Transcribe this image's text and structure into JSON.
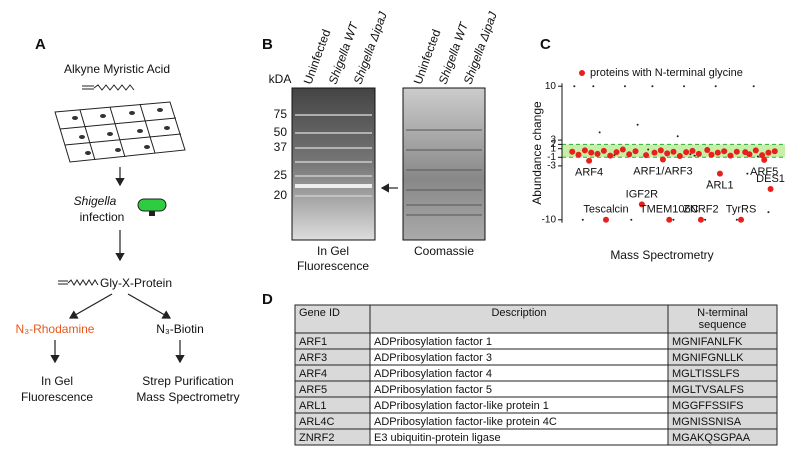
{
  "panel_a": {
    "label": "A",
    "step1": "Alkyne Myristic Acid",
    "organism": "Shigella",
    "infection": "infection",
    "product": "Gly-X-Protein",
    "left_reagent": "N₃-Rhodamine",
    "right_reagent": "N₃-Biotin",
    "left_out_1": "In Gel",
    "left_out_2": "Fluorescence",
    "right_out_1": "Strep Purification",
    "right_out_2": "Mass Spectrometry"
  },
  "panel_b": {
    "label": "B",
    "unit": "kDA",
    "lanes": [
      "Uninfected",
      "Shigella WT",
      "Shigella ΔipaJ"
    ],
    "markers": [
      "75",
      "50",
      "37",
      "25",
      "20"
    ],
    "gel1_1": "In Gel",
    "gel1_2": "Fluorescence",
    "gel2": "Coomassie"
  },
  "chart_data": {
    "type": "scatter",
    "label": "C",
    "ylabel": "Abundance change",
    "xlabel": "Mass Spectrometry",
    "xlim": [
      0,
      100
    ],
    "ylim": [
      -10,
      10
    ],
    "yticks": [
      10,
      3,
      2,
      1,
      -1,
      -3,
      -10
    ],
    "band": [
      -1,
      2
    ],
    "band_color": "#c6f0a8",
    "series": [
      {
        "name": "proteins with N-terminal glycine",
        "color": "#e8201c",
        "x": [
          2,
          5,
          8,
          11,
          14,
          17,
          20,
          23,
          26,
          29,
          32,
          37,
          41,
          44,
          47,
          50,
          53,
          56,
          59,
          62,
          66,
          68,
          71,
          74,
          77,
          80,
          84,
          86,
          89,
          92,
          95,
          98,
          10,
          18,
          35,
          45,
          48,
          63,
          72,
          82,
          93,
          96
        ],
        "values": [
          0.3,
          -0.4,
          0.6,
          0.1,
          -0.2,
          0.5,
          -0.6,
          0.2,
          0.8,
          -0.3,
          0.4,
          -0.5,
          0.1,
          0.6,
          -0.1,
          0.3,
          -0.7,
          0.2,
          0.5,
          -0.2,
          0.7,
          -0.4,
          0.1,
          0.4,
          -0.6,
          0.3,
          0.2,
          -0.3,
          0.6,
          -0.5,
          0.1,
          0.4,
          -1.8,
          -10,
          -8,
          -1.5,
          -10,
          -10,
          -4,
          -10,
          -1.6,
          -6
        ],
        "labels": [
          null,
          null,
          null,
          null,
          null,
          null,
          null,
          null,
          null,
          null,
          null,
          null,
          null,
          null,
          null,
          null,
          null,
          null,
          null,
          null,
          null,
          null,
          null,
          null,
          null,
          null,
          null,
          null,
          null,
          null,
          null,
          null,
          "ARF4",
          "Tescalcin",
          "IGF2R",
          "ARF1/ARF3",
          "TMEM106C",
          "ZNRF2",
          "ARL1",
          "TyrRS",
          "ARF5",
          "DES1"
        ]
      },
      {
        "color": "#222222",
        "x": [
          3,
          12,
          27,
          40,
          55,
          70,
          88,
          15,
          33,
          52,
          67,
          85,
          22,
          38,
          58,
          75,
          90,
          7,
          30,
          50,
          65,
          80,
          95,
          44,
          60
        ],
        "values": [
          10,
          10,
          10,
          10,
          10,
          10,
          10,
          4,
          5,
          3.5,
          -5,
          -4,
          -0.5,
          0.8,
          -0.3,
          0.5,
          -0.8,
          -10,
          -10,
          -10,
          -10,
          -10,
          -9,
          0.2,
          -0.6
        ]
      }
    ]
  },
  "panel_d": {
    "label": "D",
    "header": [
      "Gene ID",
      "Description",
      "N-terminal",
      "sequence"
    ],
    "rows": [
      [
        "ARF1",
        "ADPribosylation factor 1",
        "MGNIFANLFK"
      ],
      [
        "ARF3",
        "ADPribosylation factor 3",
        "MGNIFGNLLK"
      ],
      [
        "ARF4",
        "ADPribosylation factor 4",
        "MGLTISSLFS"
      ],
      [
        "ARF5",
        "ADPribosylation factor 5",
        "MGLTVSALFS"
      ],
      [
        "ARL1",
        "ADPribosylation factor-like protein 1",
        "MGGFFSSIFS"
      ],
      [
        "ARL4C",
        "ADPribosylation factor-like protein 4C",
        "MGNISSNISA"
      ],
      [
        "ZNRF2",
        "E3 ubiquitin-protein ligase",
        "MGAKQSGPAA"
      ]
    ]
  }
}
